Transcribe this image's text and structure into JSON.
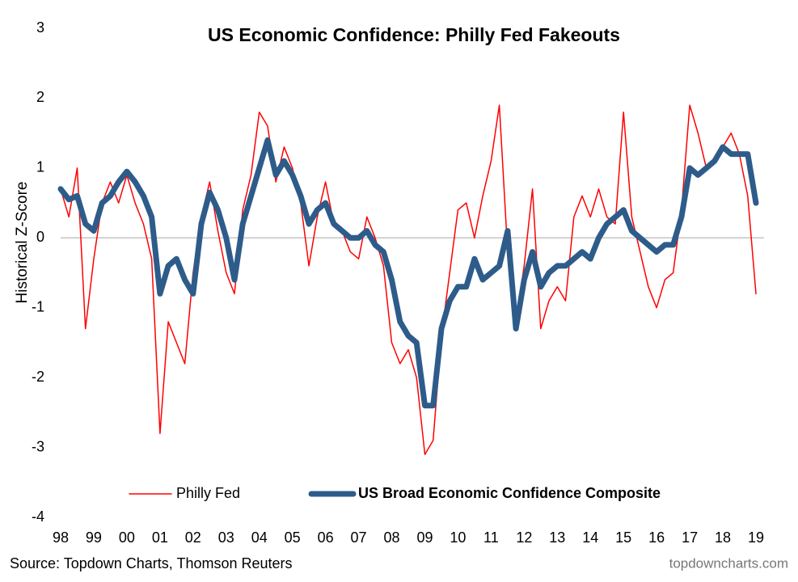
{
  "chart_data": {
    "type": "line",
    "title": "US Economic Confidence: Philly Fed Fakeouts",
    "y_label": "Historical Z-Score",
    "source": "Source: Topdown Charts, Thomson Reuters",
    "watermark": "topdowncharts.com",
    "xlim": [
      1998,
      2019
    ],
    "xticks": [
      {
        "value": 1998,
        "label": "98"
      },
      {
        "value": 1999,
        "label": "99"
      },
      {
        "value": 2000,
        "label": "00"
      },
      {
        "value": 2001,
        "label": "01"
      },
      {
        "value": 2002,
        "label": "02"
      },
      {
        "value": 2003,
        "label": "03"
      },
      {
        "value": 2004,
        "label": "04"
      },
      {
        "value": 2005,
        "label": "05"
      },
      {
        "value": 2006,
        "label": "06"
      },
      {
        "value": 2007,
        "label": "07"
      },
      {
        "value": 2008,
        "label": "08"
      },
      {
        "value": 2009,
        "label": "09"
      },
      {
        "value": 2010,
        "label": "10"
      },
      {
        "value": 2011,
        "label": "11"
      },
      {
        "value": 2012,
        "label": "12"
      },
      {
        "value": 2013,
        "label": "13"
      },
      {
        "value": 2014,
        "label": "14"
      },
      {
        "value": 2015,
        "label": "15"
      },
      {
        "value": 2016,
        "label": "16"
      },
      {
        "value": 2017,
        "label": "17"
      },
      {
        "value": 2018,
        "label": "18"
      },
      {
        "value": 2019,
        "label": "19"
      }
    ],
    "ylim": [
      -4,
      3
    ],
    "yticks": [
      -4,
      -3,
      -2,
      -1,
      0,
      1,
      2,
      3
    ],
    "grid": false,
    "x": [
      1998,
      1998.25,
      1998.5,
      1998.75,
      1999,
      1999.25,
      1999.5,
      1999.75,
      2000,
      2000.25,
      2000.5,
      2000.75,
      2001,
      2001.25,
      2001.5,
      2001.75,
      2002,
      2002.25,
      2002.5,
      2002.75,
      2003,
      2003.25,
      2003.5,
      2003.75,
      2004,
      2004.25,
      2004.5,
      2004.75,
      2005,
      2005.25,
      2005.5,
      2005.75,
      2006,
      2006.25,
      2006.5,
      2006.75,
      2007,
      2007.25,
      2007.5,
      2007.75,
      2008,
      2008.25,
      2008.5,
      2008.75,
      2009,
      2009.25,
      2009.5,
      2009.75,
      2010,
      2010.25,
      2010.5,
      2010.75,
      2011,
      2011.25,
      2011.5,
      2011.75,
      2012,
      2012.25,
      2012.5,
      2012.75,
      2013,
      2013.25,
      2013.5,
      2013.75,
      2014,
      2014.25,
      2014.5,
      2014.75,
      2015,
      2015.25,
      2015.5,
      2015.75,
      2016,
      2016.25,
      2016.5,
      2016.75,
      2017,
      2017.25,
      2017.5,
      2017.75,
      2018,
      2018.25,
      2018.5,
      2018.75,
      2019
    ],
    "series": [
      {
        "name": "Philly Fed",
        "color": "#ff0000",
        "width": 1.5,
        "values": [
          0.7,
          0.3,
          1.0,
          -1.3,
          -0.3,
          0.5,
          0.8,
          0.5,
          0.9,
          0.5,
          0.2,
          -0.3,
          -2.8,
          -1.2,
          -1.5,
          -1.8,
          -0.5,
          0.3,
          0.8,
          0.1,
          -0.5,
          -0.8,
          0.4,
          0.9,
          1.8,
          1.6,
          0.8,
          1.3,
          1.0,
          0.5,
          -0.4,
          0.3,
          0.8,
          0.2,
          0.1,
          -0.2,
          -0.3,
          0.3,
          0.0,
          -0.4,
          -1.5,
          -1.8,
          -1.6,
          -2.0,
          -3.1,
          -2.9,
          -1.4,
          -0.5,
          0.4,
          0.5,
          0.0,
          0.6,
          1.1,
          1.9,
          -0.2,
          -1.2,
          -0.4,
          0.7,
          -1.3,
          -0.9,
          -0.7,
          -0.9,
          0.3,
          0.6,
          0.3,
          0.7,
          0.3,
          0.2,
          1.8,
          0.3,
          -0.2,
          -0.7,
          -1.0,
          -0.6,
          -0.5,
          0.4,
          1.9,
          1.5,
          1.0,
          1.1,
          1.3,
          1.5,
          1.2,
          0.6,
          -0.8
        ]
      },
      {
        "name": "US Broad Economic Confidence Composite",
        "color": "#2e5c8a",
        "width": 7,
        "values": [
          0.7,
          0.55,
          0.6,
          0.2,
          0.1,
          0.5,
          0.6,
          0.8,
          0.95,
          0.8,
          0.6,
          0.3,
          -0.8,
          -0.4,
          -0.3,
          -0.6,
          -0.8,
          0.2,
          0.65,
          0.4,
          0.0,
          -0.6,
          0.2,
          0.6,
          1.0,
          1.4,
          0.9,
          1.1,
          0.9,
          0.6,
          0.2,
          0.4,
          0.5,
          0.2,
          0.1,
          0.0,
          0.0,
          0.1,
          -0.1,
          -0.2,
          -0.6,
          -1.2,
          -1.4,
          -1.5,
          -2.4,
          -2.4,
          -1.3,
          -0.9,
          -0.7,
          -0.7,
          -0.3,
          -0.6,
          -0.5,
          -0.4,
          0.1,
          -1.3,
          -0.6,
          -0.2,
          -0.7,
          -0.5,
          -0.4,
          -0.4,
          -0.3,
          -0.2,
          -0.3,
          0.0,
          0.2,
          0.3,
          0.4,
          0.1,
          0.0,
          -0.1,
          -0.2,
          -0.1,
          -0.1,
          0.3,
          1.0,
          0.9,
          1.0,
          1.1,
          1.3,
          1.2,
          1.2,
          1.2,
          0.5
        ]
      }
    ]
  }
}
